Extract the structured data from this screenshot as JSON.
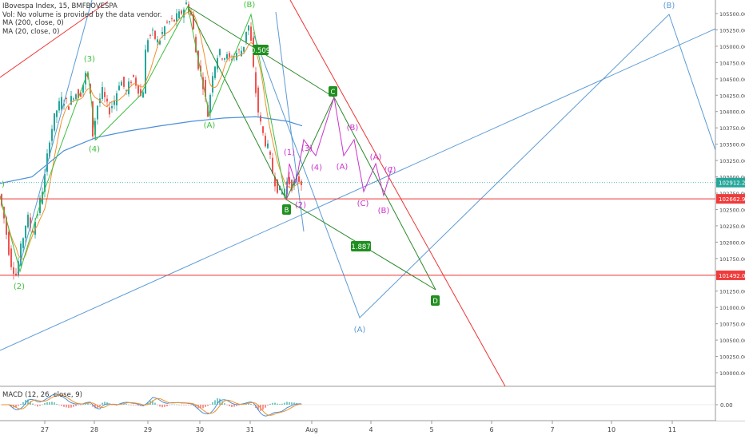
{
  "legend": {
    "symbol": "IBovespa Index, 15, BMFBOVESPA",
    "volume": "Vol: No volume is provided by the data vendor.",
    "ma200": "MA (200, close, 0)",
    "ma20": "MA (20, close, 0)"
  },
  "macd_label": "MACD (12, 26, close, 9)",
  "colors": {
    "up": "#26a69a",
    "down": "#ef5350",
    "ma200": "#4a90d9",
    "ma20": "#f0902a",
    "green_wave": "#3fbf3f",
    "dark_green": "#2a8a2a",
    "magenta": "#cc33cc",
    "blue_line": "#5b9bd5",
    "red_line": "#e33",
    "price_tag_current": "#26a69a",
    "price_tag_red": "#ef3b3b"
  },
  "chart_data": {
    "type": "candlestick",
    "title": "IBovespa Index, 15, BMFBOVESPA",
    "x_labels": [
      "27",
      "28",
      "29",
      "30",
      "31",
      "Aug",
      "4",
      "5",
      "6",
      "7",
      "10",
      "11"
    ],
    "y_ticks": [
      "105500.00",
      "105250.00",
      "105000.00",
      "104750.00",
      "104500.00",
      "104250.00",
      "104000.00",
      "103750.00",
      "103500.00",
      "103250.00",
      "103000.00",
      "102750.00",
      "102500.00",
      "102250.00",
      "102000.00",
      "101750.00",
      "101500.00",
      "101250.00",
      "101000.00",
      "100750.00",
      "100500.00",
      "100250.00",
      "100000.00"
    ],
    "ylim": [
      99850,
      105700
    ],
    "price_tags": [
      {
        "value": 102912.24,
        "label": "102912.24",
        "kind": "current"
      },
      {
        "value": 102662.91,
        "label": "102662.91",
        "kind": "level"
      },
      {
        "value": 101492.05,
        "label": "101492.05",
        "kind": "level"
      }
    ],
    "horizontal_levels": [
      102662.91,
      101492.05
    ],
    "macd_tick": "0.00",
    "wave_labels_green": [
      "(2)",
      "(3)",
      "(4)",
      "(A)",
      "(B)"
    ],
    "wave_labels_magenta": [
      "(1)",
      "(2)",
      "(3)",
      "(4)",
      "(A)",
      "(B)",
      "(C)",
      "(A)",
      "(B)",
      "(C)"
    ],
    "wave_labels_blue": [
      "(A)",
      "(B)"
    ],
    "box_labels": [
      "0.509",
      "C",
      "B",
      "1.887",
      "D"
    ]
  }
}
